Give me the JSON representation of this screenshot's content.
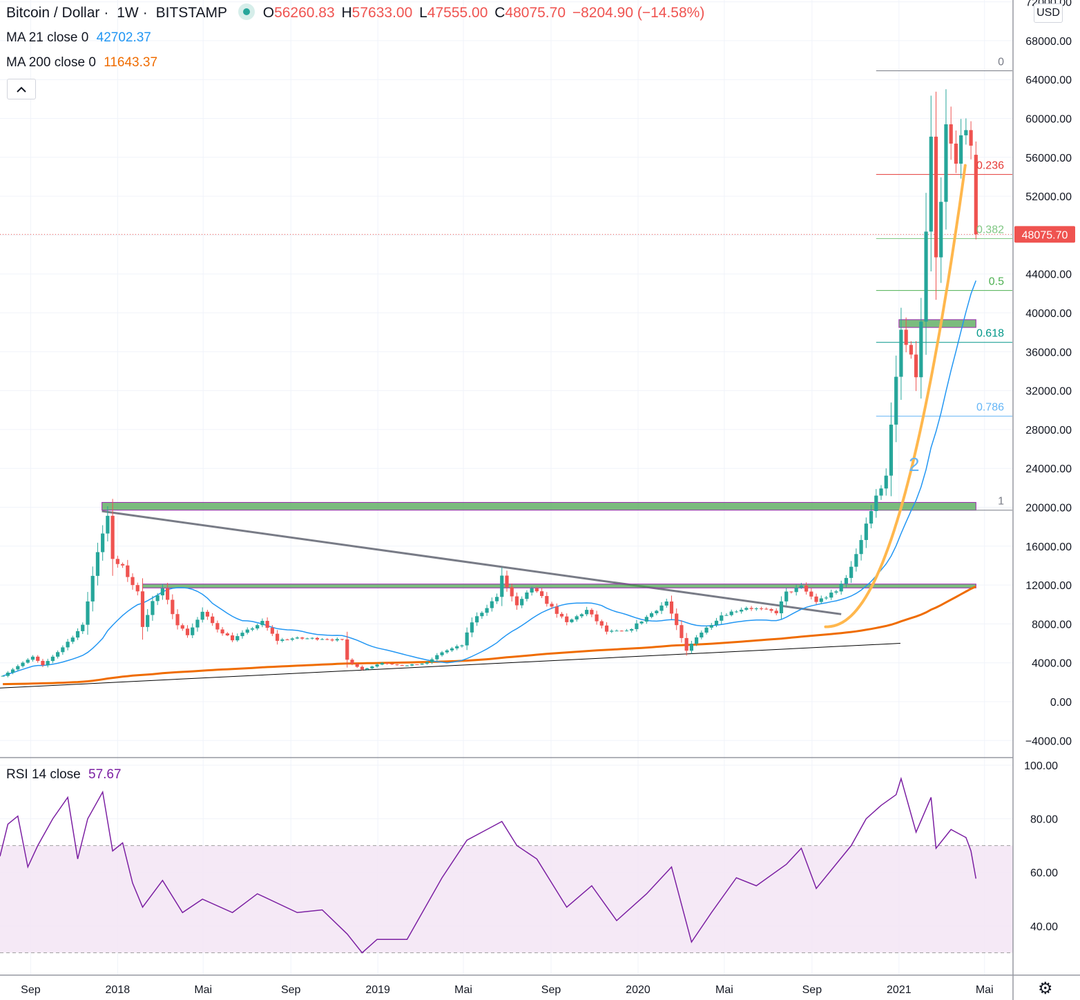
{
  "header": {
    "symbol": "Bitcoin / Dollar",
    "interval": "1W",
    "exchange": "BITSTAMP",
    "ohlc": {
      "open_label": "O",
      "open": "56260.83",
      "high_label": "H",
      "high": "57633.00",
      "low_label": "L",
      "low": "47555.00",
      "close_label": "C",
      "close": "48075.70",
      "change": "−8204.90 (−14.58%)"
    },
    "collapse_icon": "chevron-up-icon"
  },
  "indicators": {
    "ma21": {
      "label": "MA 21 close 0",
      "value": "42702.37",
      "color": "#2196f3"
    },
    "ma200": {
      "label": "MA 200 close 0",
      "value": "11643.37",
      "color": "#ef6c00"
    },
    "rsi": {
      "label": "RSI 14 close",
      "value": "57.67",
      "color": "#7b1fa2"
    }
  },
  "currency": "USD",
  "settings_icon": "gear-icon",
  "colors": {
    "up": "#26a69a",
    "down": "#ef5350",
    "fib_0": "#787b86",
    "fib_0236": "#e53935",
    "fib_0382": "#81c784",
    "fib_05": "#4caf50",
    "fib_0618": "#009688",
    "fib_0786": "#64b5f6",
    "fib_1": "#787b86",
    "zone": "#43a047",
    "parabola": "#ffb74d"
  },
  "chart_data": [
    {
      "type": "candlestick",
      "title": "Bitcoin / Dollar · 1W · BITSTAMP",
      "ylim": [
        -6000,
        72000
      ],
      "y_ticks": [
        "72000.00",
        "68000.00",
        "64000.00",
        "60000.00",
        "56000.00",
        "52000.00",
        "48000.00",
        "44000.00",
        "40000.00",
        "36000.00",
        "32000.00",
        "28000.00",
        "24000.00",
        "20000.00",
        "16000.00",
        "12000.00",
        "8000.00",
        "4000.00",
        "0.00",
        "−4000.00"
      ],
      "x_ticks": [
        "Sep",
        "2018",
        "Mai",
        "Sep",
        "2019",
        "Mai",
        "Sep",
        "2020",
        "Mai",
        "Sep",
        "2021",
        "Mai"
      ],
      "x_range": [
        "2017-07-20",
        "2021-06-10"
      ],
      "last_price": {
        "value": 48075.7,
        "label": "48075.70"
      },
      "annotations": {
        "wave_label": "2"
      },
      "close_anchors": [
        [
          "2017-07-24",
          2700
        ],
        [
          "2017-09-04",
          4600
        ],
        [
          "2017-09-18",
          3700
        ],
        [
          "2017-10-16",
          5600
        ],
        [
          "2017-11-13",
          7800
        ],
        [
          "2017-12-04",
          15500
        ],
        [
          "2017-12-18",
          19300
        ],
        [
          "2017-12-25",
          14500
        ],
        [
          "2018-01-08",
          13800
        ],
        [
          "2018-01-29",
          11200
        ],
        [
          "2018-02-05",
          7800
        ],
        [
          "2018-02-19",
          10300
        ],
        [
          "2018-03-05",
          11500
        ],
        [
          "2018-03-26",
          8000
        ],
        [
          "2018-04-09",
          6900
        ],
        [
          "2018-04-30",
          9200
        ],
        [
          "2018-05-21",
          7500
        ],
        [
          "2018-06-11",
          6400
        ],
        [
          "2018-07-23",
          8200
        ],
        [
          "2018-08-13",
          6300
        ],
        [
          "2018-09-03",
          6500
        ],
        [
          "2018-10-15",
          6500
        ],
        [
          "2018-11-12",
          6300
        ],
        [
          "2018-11-19",
          4300
        ],
        [
          "2018-12-10",
          3300
        ],
        [
          "2019-01-07",
          4000
        ],
        [
          "2019-02-11",
          3700
        ],
        [
          "2019-03-11",
          4000
        ],
        [
          "2019-04-01",
          5100
        ],
        [
          "2019-04-29",
          5800
        ],
        [
          "2019-05-13",
          8200
        ],
        [
          "2019-06-17",
          10800
        ],
        [
          "2019-06-24",
          12800
        ],
        [
          "2019-07-15",
          9800
        ],
        [
          "2019-08-05",
          11700
        ],
        [
          "2019-08-26",
          10200
        ],
        [
          "2019-09-23",
          8100
        ],
        [
          "2019-10-21",
          9400
        ],
        [
          "2019-11-18",
          7200
        ],
        [
          "2019-12-16",
          7200
        ],
        [
          "2020-01-13",
          8700
        ],
        [
          "2020-02-10",
          10300
        ],
        [
          "2020-03-09",
          5200
        ],
        [
          "2020-03-23",
          6700
        ],
        [
          "2020-04-27",
          8900
        ],
        [
          "2020-06-01",
          9700
        ],
        [
          "2020-07-13",
          9200
        ],
        [
          "2020-07-27",
          11200
        ],
        [
          "2020-08-17",
          11800
        ],
        [
          "2020-09-07",
          10300
        ],
        [
          "2020-10-05",
          11300
        ],
        [
          "2020-10-26",
          13700
        ],
        [
          "2020-11-16",
          18400
        ],
        [
          "2020-12-14",
          23500
        ],
        [
          "2020-12-28",
          33000
        ],
        [
          "2021-01-04",
          38100
        ],
        [
          "2021-01-11",
          36600
        ],
        [
          "2021-01-25",
          33600
        ],
        [
          "2021-02-01",
          38800
        ],
        [
          "2021-02-08",
          48300
        ],
        [
          "2021-02-15",
          57500
        ],
        [
          "2021-02-22",
          45000
        ],
        [
          "2021-03-01",
          51000
        ],
        [
          "2021-03-08",
          59000
        ],
        [
          "2021-03-15",
          57000
        ],
        [
          "2021-03-22",
          55000
        ],
        [
          "2021-03-29",
          58000
        ],
        [
          "2021-04-05",
          59800
        ],
        [
          "2021-04-12",
          56260.83
        ],
        [
          "2021-04-19",
          48075.7
        ]
      ],
      "last_bar": {
        "date": "2021-04-19",
        "open": 56260.83,
        "high": 57633.0,
        "low": 47555.0,
        "close": 48075.7
      }
    },
    {
      "type": "line",
      "title": "RSI 14 close",
      "ylim": [
        25,
        100
      ],
      "y_ticks": [
        "100.00",
        "80.00",
        "60.00",
        "40.00"
      ],
      "band": [
        30,
        70
      ],
      "points": [
        [
          "2017-07-20",
          66
        ],
        [
          "2017-07-31",
          78
        ],
        [
          "2017-08-14",
          81
        ],
        [
          "2017-08-28",
          62
        ],
        [
          "2017-09-11",
          70
        ],
        [
          "2017-10-02",
          80
        ],
        [
          "2017-10-23",
          88
        ],
        [
          "2017-11-06",
          65
        ],
        [
          "2017-11-20",
          80
        ],
        [
          "2017-12-11",
          90
        ],
        [
          "2017-12-25",
          68
        ],
        [
          "2018-01-08",
          71
        ],
        [
          "2018-01-22",
          56
        ],
        [
          "2018-02-05",
          47
        ],
        [
          "2018-03-05",
          57
        ],
        [
          "2018-04-02",
          45
        ],
        [
          "2018-04-30",
          50
        ],
        [
          "2018-06-11",
          45
        ],
        [
          "2018-07-16",
          52
        ],
        [
          "2018-09-10",
          45
        ],
        [
          "2018-10-15",
          46
        ],
        [
          "2018-11-19",
          37
        ],
        [
          "2018-12-10",
          30
        ],
        [
          "2018-12-31",
          35
        ],
        [
          "2019-02-11",
          35
        ],
        [
          "2019-04-01",
          58
        ],
        [
          "2019-05-06",
          72
        ],
        [
          "2019-06-03",
          76
        ],
        [
          "2019-06-24",
          79
        ],
        [
          "2019-07-15",
          70
        ],
        [
          "2019-08-12",
          65
        ],
        [
          "2019-09-23",
          47
        ],
        [
          "2019-10-28",
          55
        ],
        [
          "2019-12-02",
          42
        ],
        [
          "2020-01-13",
          52
        ],
        [
          "2020-02-17",
          62
        ],
        [
          "2020-03-16",
          34
        ],
        [
          "2020-04-13",
          45
        ],
        [
          "2020-05-18",
          58
        ],
        [
          "2020-06-15",
          55
        ],
        [
          "2020-07-27",
          63
        ],
        [
          "2020-08-17",
          69
        ],
        [
          "2020-09-07",
          54
        ],
        [
          "2020-10-26",
          70
        ],
        [
          "2020-11-16",
          80
        ],
        [
          "2020-12-07",
          85
        ],
        [
          "2020-12-28",
          89
        ],
        [
          "2021-01-04",
          95
        ],
        [
          "2021-01-25",
          75
        ],
        [
          "2021-02-15",
          88
        ],
        [
          "2021-02-22",
          69
        ],
        [
          "2021-03-15",
          76
        ],
        [
          "2021-04-05",
          73
        ],
        [
          "2021-04-12",
          68
        ],
        [
          "2021-04-19",
          57.67
        ]
      ]
    }
  ]
}
